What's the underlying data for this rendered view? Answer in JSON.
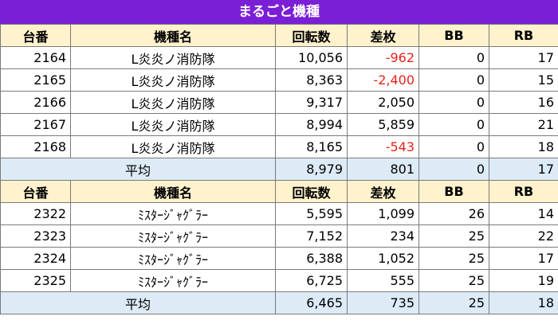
{
  "title": "まるごと機種",
  "neg_color": "#e8221c",
  "header_bg": "#fff2cc",
  "avg_bg": "#ddebf7",
  "title_bg": "#7b1fd6",
  "sections": [
    {
      "headers": [
        "台番",
        "機種名",
        "回転数",
        "差枚",
        "BB",
        "RB"
      ],
      "rows": [
        {
          "no": "2164",
          "name": "L炎炎ノ消防隊",
          "spins": "10,056",
          "diff": "-962",
          "bb": "0",
          "rb": "17",
          "neg": true
        },
        {
          "no": "2165",
          "name": "L炎炎ノ消防隊",
          "spins": "8,363",
          "diff": "-2,400",
          "bb": "0",
          "rb": "15",
          "neg": true
        },
        {
          "no": "2166",
          "name": "L炎炎ノ消防隊",
          "spins": "9,317",
          "diff": "2,050",
          "bb": "0",
          "rb": "16",
          "neg": false
        },
        {
          "no": "2167",
          "name": "L炎炎ノ消防隊",
          "spins": "8,994",
          "diff": "5,859",
          "bb": "0",
          "rb": "21",
          "neg": false
        },
        {
          "no": "2168",
          "name": "L炎炎ノ消防隊",
          "spins": "8,165",
          "diff": "-543",
          "bb": "0",
          "rb": "18",
          "neg": true
        }
      ],
      "avg": {
        "label": "平均",
        "spins": "8,979",
        "diff": "801",
        "bb": "0",
        "rb": "17"
      }
    },
    {
      "headers": [
        "台番",
        "機種名",
        "回転数",
        "差枚",
        "BB",
        "RB"
      ],
      "rows": [
        {
          "no": "2322",
          "name": "ﾐｽﾀｰｼﾞｬｸﾞﾗｰ",
          "spins": "5,595",
          "diff": "1,099",
          "bb": "26",
          "rb": "14",
          "neg": false
        },
        {
          "no": "2323",
          "name": "ﾐｽﾀｰｼﾞｬｸﾞﾗｰ",
          "spins": "7,152",
          "diff": "234",
          "bb": "25",
          "rb": "22",
          "neg": false
        },
        {
          "no": "2324",
          "name": "ﾐｽﾀｰｼﾞｬｸﾞﾗｰ",
          "spins": "6,388",
          "diff": "1,052",
          "bb": "25",
          "rb": "17",
          "neg": false
        },
        {
          "no": "2325",
          "name": "ﾐｽﾀｰｼﾞｬｸﾞﾗｰ",
          "spins": "6,725",
          "diff": "555",
          "bb": "25",
          "rb": "19",
          "neg": false
        }
      ],
      "avg": {
        "label": "平均",
        "spins": "6,465",
        "diff": "735",
        "bb": "25",
        "rb": "18"
      }
    }
  ]
}
